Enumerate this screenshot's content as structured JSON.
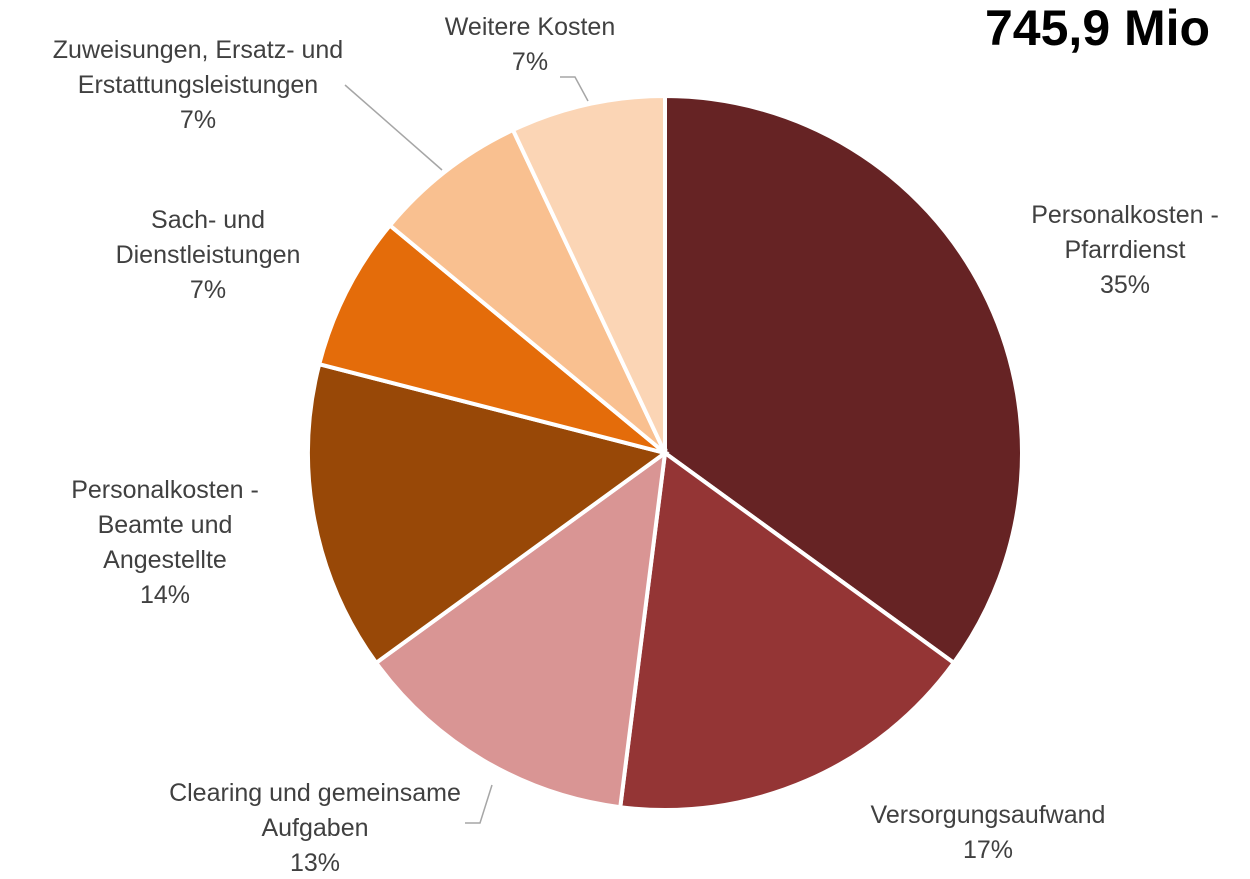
{
  "chart_data": {
    "type": "pie",
    "title": "745,9 Mio",
    "categories": [
      "Personalkosten - Pfarrdienst",
      "Versorgungsaufwand",
      "Clearing und gemeinsame Aufgaben",
      "Personalkosten - Beamte und Angestellte",
      "Sach- und Dienstleistungen",
      "Zuweisungen, Ersatz- und Erstattungsleistungen",
      "Weitere Kosten"
    ],
    "values": [
      35,
      17,
      13,
      14,
      7,
      7,
      7
    ],
    "value_labels": [
      "35%",
      "17%",
      "13%",
      "14%",
      "7%",
      "7%",
      "7%"
    ],
    "colors": [
      "#662324",
      "#943535",
      "#d99594",
      "#984807",
      "#e46c0a",
      "#f9c090",
      "#fbd5b5"
    ]
  }
}
